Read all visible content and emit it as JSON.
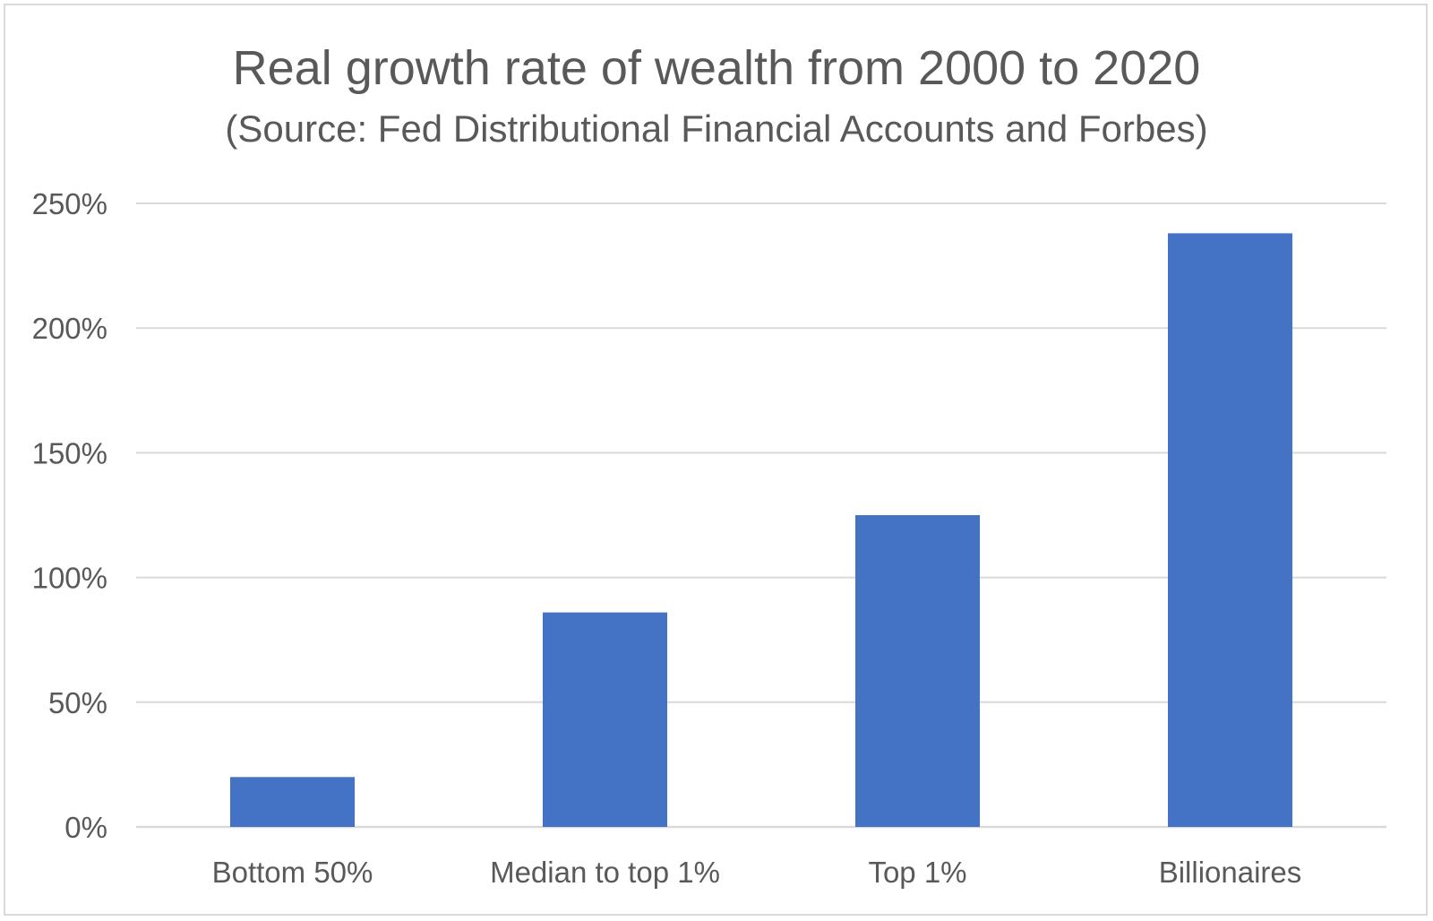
{
  "chart_data": {
    "type": "bar",
    "title": "Real growth rate of wealth from 2000 to 2020",
    "subtitle": "(Source: Fed Distributional Financial Accounts and Forbes)",
    "categories": [
      "Bottom 50%",
      "Median to top 1%",
      "Top 1%",
      "Billionaires"
    ],
    "values": [
      20,
      86,
      125,
      238
    ],
    "value_unit": "%",
    "xlabel": "",
    "ylabel": "",
    "ylim": [
      0,
      250
    ],
    "y_ticks": [
      0,
      50,
      100,
      150,
      200,
      250
    ],
    "y_tick_labels": [
      "0%",
      "50%",
      "100%",
      "150%",
      "200%",
      "250%"
    ],
    "grid": true,
    "legend": "none",
    "colors": {
      "bar": "#4472c4",
      "grid": "#d9d9d9",
      "text": "#595959"
    }
  }
}
